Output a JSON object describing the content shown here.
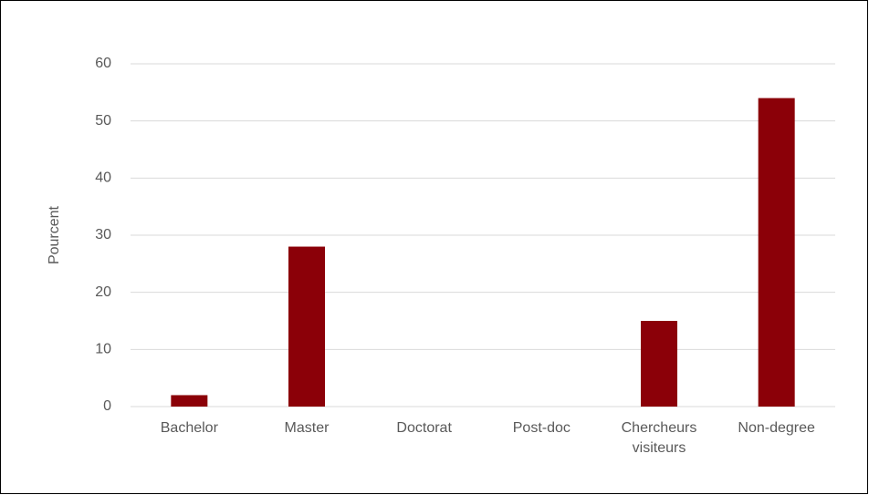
{
  "chart_data": {
    "type": "bar",
    "y_label": "Pourcent",
    "categories": [
      "Bachelor",
      "Master",
      "Doctorat",
      "Post-doc",
      "Chercheurs visiteurs",
      "Non-degree"
    ],
    "values": [
      2,
      28,
      0,
      0,
      15,
      54
    ],
    "color": "#8b0008",
    "ylim": [
      0,
      60
    ],
    "yticks": [
      0,
      10,
      20,
      30,
      40,
      50,
      60
    ],
    "grid": true
  }
}
